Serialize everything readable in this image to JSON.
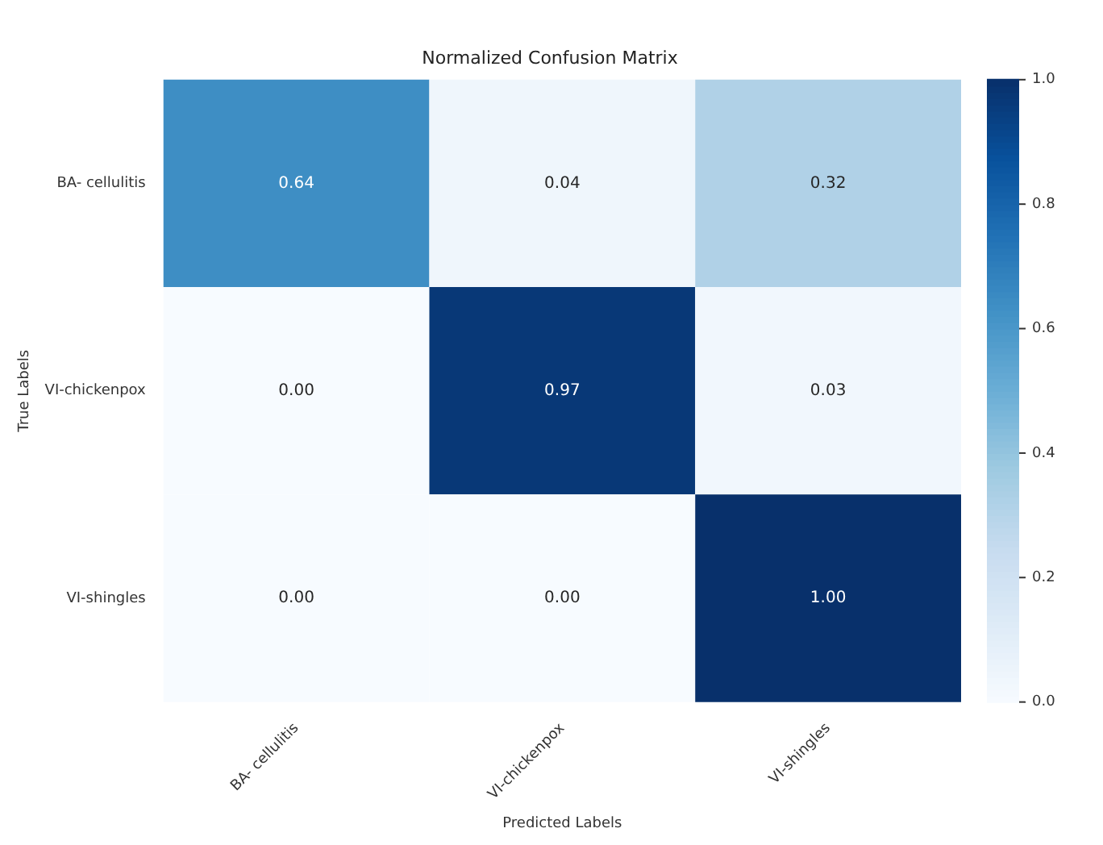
{
  "chart_data": {
    "type": "heatmap",
    "title": "Normalized Confusion Matrix",
    "xlabel": "Predicted Labels",
    "ylabel": "True Labels",
    "categories": [
      "BA- cellulitis",
      "VI-chickenpox",
      "VI-shingles"
    ],
    "y_categories": [
      "BA- cellulitis",
      "VI-chickenpox",
      "VI-shingles"
    ],
    "cells": [
      [
        0.64,
        0.04,
        0.32
      ],
      [
        0.0,
        0.97,
        0.03
      ],
      [
        0.0,
        0.0,
        1.0
      ]
    ],
    "cell_labels": [
      [
        "0.64",
        "0.04",
        "0.32"
      ],
      [
        "0.00",
        "0.97",
        "0.03"
      ],
      [
        "0.00",
        "0.00",
        "1.00"
      ]
    ],
    "clim": [
      0,
      1
    ],
    "cticks": [
      {
        "value": 0,
        "label": "0.0"
      },
      {
        "value": 0.2,
        "label": "0.2"
      },
      {
        "value": 0.4,
        "label": "0.4"
      },
      {
        "value": 0.6,
        "label": "0.6"
      },
      {
        "value": 0.8,
        "label": "0.8"
      },
      {
        "value": 1,
        "label": "1.0"
      }
    ]
  }
}
